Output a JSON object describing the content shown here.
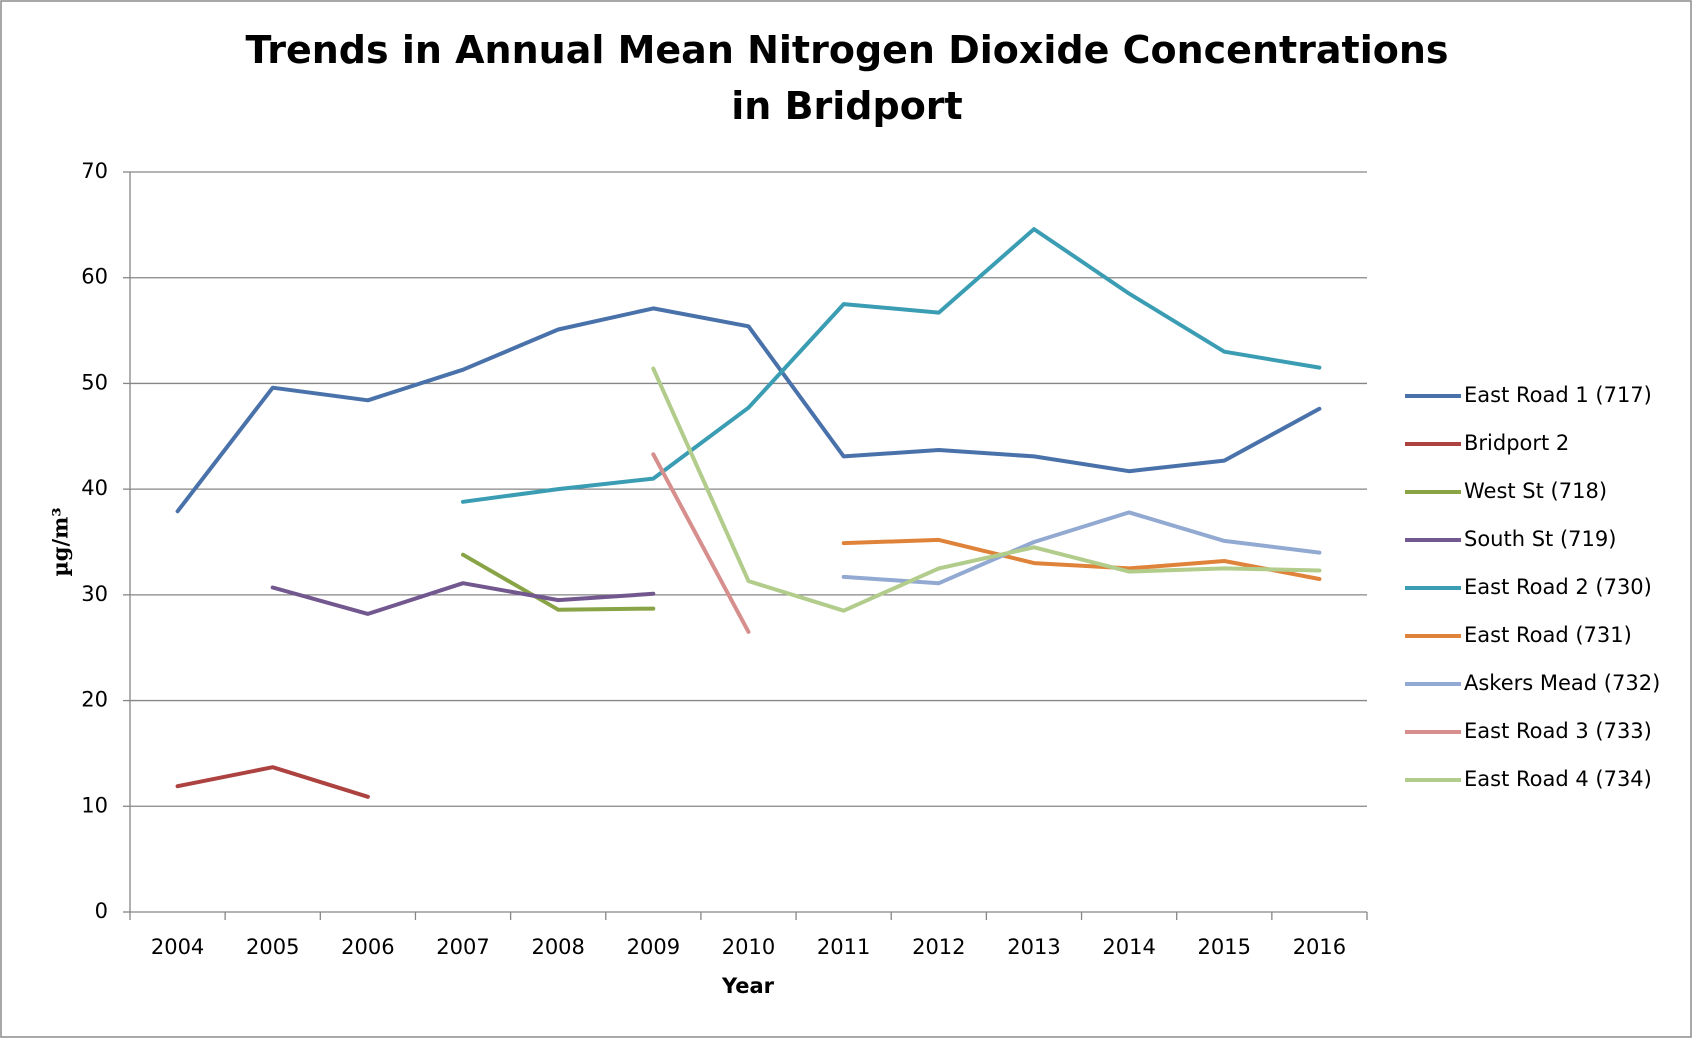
{
  "chart_data": {
    "type": "line",
    "title": "Trends in Annual Mean Nitrogen Dioxide Concentrations in Bridport",
    "x_label": "Year",
    "y_label": "µg/m³",
    "categories": [
      "2004",
      "2005",
      "2006",
      "2007",
      "2008",
      "2009",
      "2010",
      "2011",
      "2012",
      "2013",
      "2014",
      "2015",
      "2016"
    ],
    "ylim": [
      0,
      70
    ],
    "yticks": [
      0,
      10,
      20,
      30,
      40,
      50,
      60,
      70
    ],
    "grid": true,
    "legend": "right",
    "series": [
      {
        "name": "East Road 1 (717)",
        "color": "#4a72aa",
        "values": [
          37.9,
          49.6,
          48.4,
          51.3,
          55.1,
          57.1,
          55.4,
          43.1,
          43.7,
          43.1,
          41.7,
          42.7,
          47.6
        ]
      },
      {
        "name": "Bridport 2",
        "color": "#ad4340",
        "values": [
          11.9,
          13.7,
          10.9,
          null,
          null,
          null,
          null,
          null,
          null,
          null,
          null,
          null,
          null
        ]
      },
      {
        "name": "West St (718)",
        "color": "#88a447",
        "values": [
          null,
          null,
          null,
          33.8,
          28.6,
          28.7,
          null,
          null,
          null,
          null,
          null,
          null,
          null
        ]
      },
      {
        "name": "South St (719)",
        "color": "#73578f",
        "values": [
          null,
          30.7,
          28.2,
          31.1,
          29.5,
          30.1,
          null,
          null,
          null,
          null,
          null,
          null,
          null
        ]
      },
      {
        "name": "East Road 2 (730)",
        "color": "#3a9db3",
        "values": [
          null,
          null,
          null,
          38.8,
          40.0,
          41.0,
          47.7,
          57.5,
          56.7,
          64.6,
          58.5,
          53.0,
          51.5
        ]
      },
      {
        "name": "East Road (731)",
        "color": "#e0833a",
        "values": [
          null,
          null,
          null,
          null,
          null,
          null,
          null,
          34.9,
          35.2,
          33.0,
          32.5,
          33.2,
          31.5
        ]
      },
      {
        "name": "Askers Mead (732)",
        "color": "#92a9d2",
        "values": [
          null,
          null,
          null,
          null,
          null,
          null,
          null,
          31.7,
          31.1,
          35.0,
          37.8,
          35.1,
          34.0
        ]
      },
      {
        "name": "East Road 3 (733)",
        "color": "#d68f8d",
        "values": [
          null,
          null,
          null,
          null,
          null,
          43.3,
          26.5,
          null,
          null,
          null,
          null,
          null,
          null
        ]
      },
      {
        "name": "East Road 4 (734)",
        "color": "#b2cc8b",
        "values": [
          null,
          null,
          null,
          null,
          null,
          51.4,
          31.3,
          28.5,
          32.5,
          34.5,
          32.2,
          32.5,
          32.3
        ]
      }
    ]
  }
}
